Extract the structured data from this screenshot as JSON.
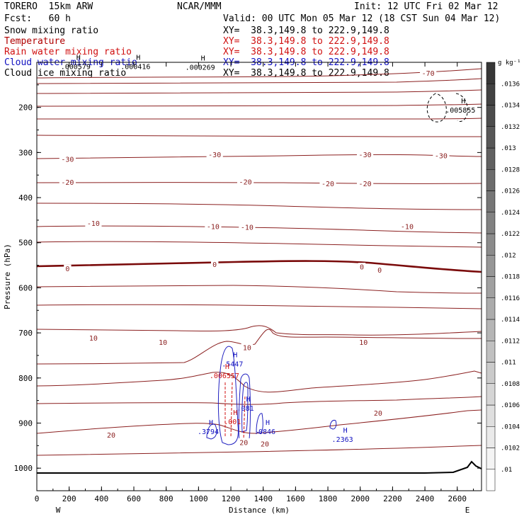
{
  "header": {
    "model": "TORERO  15km ARW",
    "center": "NCAR/MMM",
    "init": "Init: 12 UTC Fri 02 Mar 12",
    "fcst": "Fcst:   60 h",
    "valid": "Valid: 00 UTC Mon 05 Mar 12 (18 CST Sun 04 Mar 12)",
    "fields": [
      {
        "name": "Snow mixing ratio",
        "xy": "XY=  38.3,149.8 to 222.9,149.8",
        "color": "#000000"
      },
      {
        "name": "Temperature",
        "xy": "XY=  38.3,149.8 to 222.9,149.8",
        "color": "#b00000"
      },
      {
        "name": "Rain water mixing ratio",
        "xy": "XY=  38.3,149.8 to 222.9,149.8",
        "color": "#d01010"
      },
      {
        "name": "Cloud water mixing ratio",
        "xy": "XY=  38.3,149.8 to 222.9,149.8",
        "color": "#1010c0"
      },
      {
        "name": "Cloud ice mixing ratio",
        "xy": "XY=  38.3,149.8 to 222.9,149.8",
        "color": "#000000"
      }
    ]
  },
  "chart_data": {
    "type": "contour",
    "xlabel": "Distance (km)",
    "ylabel": "Pressure (hPa)",
    "xlim": [
      0,
      2750
    ],
    "ylim": [
      1050,
      100
    ],
    "x_ticks": [
      0,
      200,
      400,
      600,
      800,
      1000,
      1200,
      1400,
      1600,
      1800,
      2000,
      2200,
      2400,
      2600
    ],
    "y_ticks": [
      200,
      300,
      400,
      500,
      600,
      700,
      800,
      900,
      1000
    ],
    "endpoints": {
      "left": "W",
      "right": "E"
    },
    "colorbar": {
      "unit": "g kg⁻¹",
      "ticks": [
        ".01",
        ".0102",
        ".0104",
        ".0106",
        ".0108",
        ".011",
        ".0112",
        ".0114",
        ".0116",
        ".0118",
        ".012",
        ".0122",
        ".0124",
        ".0126",
        ".0128",
        ".013",
        ".0132",
        ".0134",
        ".0136"
      ]
    },
    "temperature_contour_labels": [
      {
        "value": "-70",
        "x": 2420,
        "p": 124
      },
      {
        "value": "-30",
        "x": 190,
        "p": 315
      },
      {
        "value": "-30",
        "x": 1100,
        "p": 305
      },
      {
        "value": "-30",
        "x": 2030,
        "p": 305
      },
      {
        "value": "-30",
        "x": 2500,
        "p": 307
      },
      {
        "value": "-20",
        "x": 190,
        "p": 366
      },
      {
        "value": "-20",
        "x": 1290,
        "p": 365
      },
      {
        "value": "-20",
        "x": 1800,
        "p": 369
      },
      {
        "value": "-20",
        "x": 2030,
        "p": 369
      },
      {
        "value": "-10",
        "x": 350,
        "p": 457
      },
      {
        "value": "-10",
        "x": 1090,
        "p": 464
      },
      {
        "value": "-10",
        "x": 1300,
        "p": 466
      },
      {
        "value": "-10",
        "x": 2290,
        "p": 464
      },
      {
        "value": "0",
        "x": 190,
        "p": 558
      },
      {
        "value": "0",
        "x": 1100,
        "p": 548
      },
      {
        "value": "0",
        "x": 2010,
        "p": 554
      },
      {
        "value": "0",
        "x": 2120,
        "p": 561
      },
      {
        "value": "10",
        "x": 350,
        "p": 712
      },
      {
        "value": "10",
        "x": 780,
        "p": 721
      },
      {
        "value": "10",
        "x": 1300,
        "p": 733
      },
      {
        "value": "10",
        "x": 2020,
        "p": 721
      },
      {
        "value": "20",
        "x": 460,
        "p": 927
      },
      {
        "value": "20",
        "x": 1280,
        "p": 943
      },
      {
        "value": "20",
        "x": 1410,
        "p": 946
      },
      {
        "value": "20",
        "x": 2110,
        "p": 878
      }
    ],
    "maxima": [
      {
        "value": ".000579",
        "x": 240,
        "p": 110,
        "color": "#000000"
      },
      {
        "value": ".000416",
        "x": 610,
        "p": 110,
        "color": "#000000"
      },
      {
        "value": ".000269",
        "x": 1010,
        "p": 112,
        "color": "#000000"
      },
      {
        "value": ".005855",
        "x": 2620,
        "p": 207,
        "color": "#000000"
      },
      {
        "value": ".5447",
        "x": 1210,
        "p": 770,
        "color": "#1010c0"
      },
      {
        "value": ".006557",
        "x": 1160,
        "p": 796,
        "color": "#d01010"
      },
      {
        "value": ".081",
        "x": 1290,
        "p": 868,
        "color": "#1010c0"
      },
      {
        "value": ".001",
        "x": 1210,
        "p": 898,
        "color": "#d01010"
      },
      {
        "value": ".3794",
        "x": 1060,
        "p": 920,
        "color": "#1010c0"
      },
      {
        "value": ".0846",
        "x": 1410,
        "p": 920,
        "color": "#1010c0"
      },
      {
        "value": ".2363",
        "x": 1890,
        "p": 937,
        "color": "#1010c0"
      }
    ]
  }
}
